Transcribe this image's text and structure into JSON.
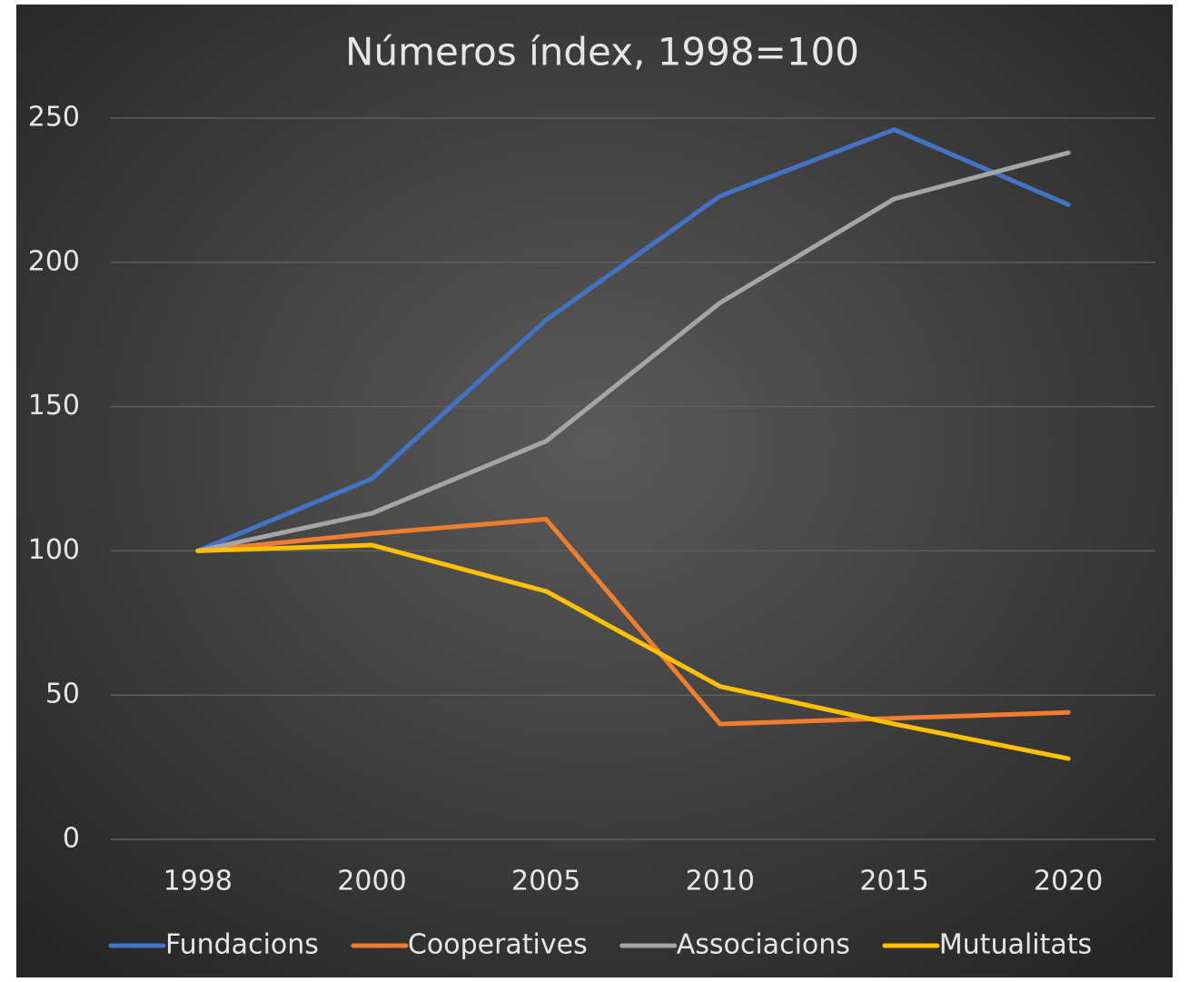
{
  "chart_data": {
    "type": "line",
    "title": "Números índex, 1998=100",
    "categories": [
      "1998",
      "2000",
      "2005",
      "2010",
      "2015",
      "2020"
    ],
    "series": [
      {
        "name": "Fundacions",
        "color": "#4472c4",
        "values": [
          100,
          125,
          180,
          223,
          246,
          220
        ]
      },
      {
        "name": "Cooperatives",
        "color": "#ed7d31",
        "values": [
          100,
          106,
          111,
          40,
          42,
          44
        ]
      },
      {
        "name": "Associacions",
        "color": "#a5a5a5",
        "values": [
          100,
          113,
          138,
          186,
          222,
          238
        ]
      },
      {
        "name": "Mutualitats",
        "color": "#ffc000",
        "values": [
          100,
          102,
          86,
          53,
          40,
          28
        ]
      }
    ],
    "ylim": [
      0,
      250
    ],
    "yticks": [
      0,
      50,
      100,
      150,
      200,
      250
    ],
    "grid": true,
    "legend": "bottom"
  }
}
